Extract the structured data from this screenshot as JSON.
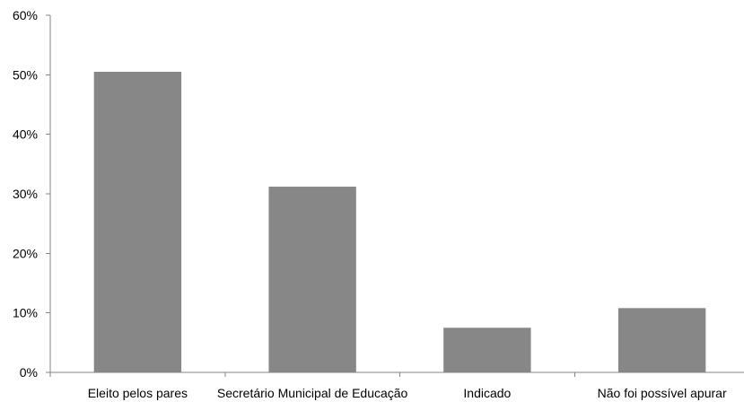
{
  "chart_data": {
    "type": "bar",
    "categories": [
      "Eleito pelos pares",
      "Secretário Municipal de Educação",
      "Indicado",
      "Não foi possível apurar"
    ],
    "values": [
      50.5,
      31.2,
      7.5,
      10.8
    ],
    "ylim": [
      0,
      60
    ],
    "yticks": [
      "0%",
      "10%",
      "20%",
      "30%",
      "40%",
      "50%",
      "60%"
    ],
    "grid": false,
    "legend": "none",
    "bar_color": "#878787",
    "axis_color": "#868686"
  }
}
